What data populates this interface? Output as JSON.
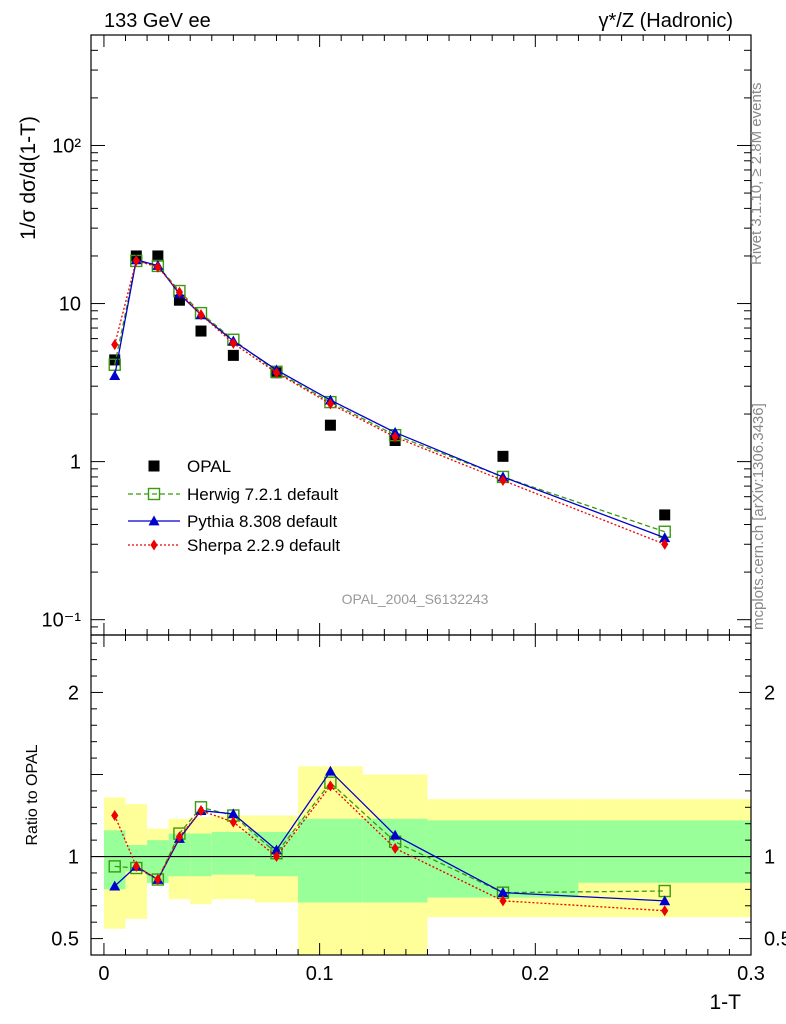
{
  "header": {
    "energy_label": "133 GeV ee",
    "process_label": "γ*/Z (Hadronic)"
  },
  "side_labels": {
    "rivet": "Rivet 3.1.10, ≥ 2.8M events",
    "mcplots": "mcplots.cern.ch [arXiv:1306.3436]"
  },
  "analysis_id": "OPAL_2004_S6132243",
  "colors": {
    "data": "#000000",
    "herwig": "#3a9a10",
    "pythia": "#0000cc",
    "sherpa": "#ee0000",
    "band_inner": "#99ff99",
    "band_outer": "#ffff99"
  },
  "chart_data": [
    {
      "type": "scatter",
      "panel": "main",
      "ylabel": "1/σ dσ/d(1-T)",
      "yscale": "log",
      "ylim": [
        0.08,
        500
      ],
      "yticks": [
        "10⁻¹",
        "1",
        "10",
        "10²"
      ],
      "x": [
        0.005,
        0.015,
        0.025,
        0.035,
        0.045,
        0.06,
        0.08,
        0.105,
        0.135,
        0.185,
        0.26
      ],
      "series": [
        {
          "name": "OPAL",
          "marker": "square",
          "values": [
            4.4,
            20.0,
            20.0,
            10.5,
            6.7,
            4.7,
            3.65,
            1.7,
            1.36,
            1.08,
            0.46
          ]
        },
        {
          "name": "Herwig 7.2.1 default",
          "marker": "open-square",
          "line": "dashed",
          "values": [
            4.1,
            18.6,
            17.3,
            12.0,
            8.7,
            5.9,
            3.7,
            2.38,
            1.47,
            0.8,
            0.36
          ]
        },
        {
          "name": "Pythia 8.308 default",
          "marker": "triangle",
          "line": "solid",
          "values": [
            3.5,
            18.9,
            17.4,
            11.5,
            8.5,
            5.8,
            3.8,
            2.45,
            1.53,
            0.8,
            0.33
          ]
        },
        {
          "name": "Sherpa 2.2.9 default",
          "marker": "diamond",
          "line": "dotted",
          "values": [
            5.5,
            18.7,
            17.0,
            11.8,
            8.5,
            5.6,
            3.65,
            2.32,
            1.43,
            0.76,
            0.3
          ]
        }
      ],
      "legend_position": "lower-left"
    },
    {
      "type": "line",
      "panel": "ratio",
      "ylabel": "Ratio to OPAL",
      "xlabel": "1-T",
      "xlim": [
        -0.006,
        0.3
      ],
      "xticks": [
        "0",
        "0.1",
        "0.2",
        "0.3"
      ],
      "ylim": [
        0.4,
        2.35
      ],
      "yticks": [
        "0.5",
        "1",
        "2"
      ],
      "x": [
        0.005,
        0.015,
        0.025,
        0.035,
        0.045,
        0.06,
        0.08,
        0.105,
        0.135,
        0.185,
        0.26
      ],
      "series": [
        {
          "name": "Herwig 7.2.1 default",
          "values": [
            0.94,
            0.93,
            0.86,
            1.14,
            1.3,
            1.25,
            1.02,
            1.45,
            1.09,
            0.78,
            0.79
          ]
        },
        {
          "name": "Pythia 8.308 default",
          "values": [
            0.82,
            0.94,
            0.86,
            1.11,
            1.28,
            1.26,
            1.04,
            1.52,
            1.13,
            0.78,
            0.73
          ]
        },
        {
          "name": "Sherpa 2.2.9 default",
          "values": [
            1.25,
            0.94,
            0.86,
            1.12,
            1.28,
            1.21,
            1.0,
            1.43,
            1.05,
            0.73,
            0.67
          ]
        }
      ],
      "reference": 1,
      "bands": {
        "edges": [
          0.0,
          0.01,
          0.02,
          0.03,
          0.04,
          0.05,
          0.07,
          0.09,
          0.12,
          0.15,
          0.22,
          0.3
        ],
        "inner_lo": [
          0.8,
          0.91,
          0.84,
          0.88,
          0.88,
          0.89,
          0.88,
          0.72,
          0.72,
          0.75,
          0.84
        ],
        "inner_hi": [
          1.16,
          1.07,
          1.1,
          1.14,
          1.14,
          1.15,
          1.15,
          1.23,
          1.23,
          1.22,
          1.22
        ],
        "outer_lo": [
          0.56,
          0.62,
          0.84,
          0.74,
          0.71,
          0.74,
          0.72,
          0.37,
          0.37,
          0.63,
          0.63
        ],
        "outer_hi": [
          1.36,
          1.32,
          1.17,
          1.23,
          1.24,
          1.25,
          1.25,
          1.55,
          1.5,
          1.35,
          1.35
        ]
      }
    }
  ]
}
